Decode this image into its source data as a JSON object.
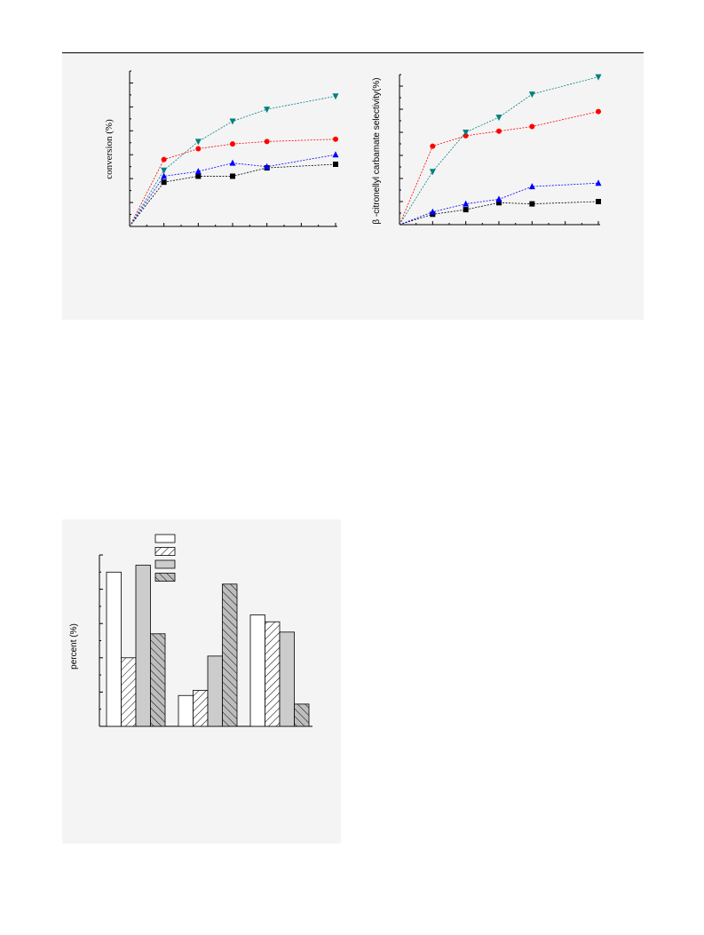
{
  "page": {
    "background": "#ffffff",
    "panel_background": "#f4f4f4"
  },
  "chart_data": [
    {
      "type": "line",
      "ylabel": "conversion (%)",
      "xlim": [
        0,
        6
      ],
      "ylim": [
        0,
        13
      ],
      "grid": false,
      "series": [
        {
          "marker": "square",
          "color": "#000000",
          "x": [
            0,
            1,
            2,
            3,
            4,
            6
          ],
          "y": [
            0,
            3.7,
            4.2,
            4.2,
            4.9,
            5.2
          ]
        },
        {
          "marker": "triangle-up",
          "color": "#0000ff",
          "x": [
            0,
            1,
            2,
            3,
            4,
            6
          ],
          "y": [
            0,
            4.2,
            4.6,
            5.3,
            5.0,
            6.0
          ]
        },
        {
          "marker": "circle",
          "color": "#ff0000",
          "x": [
            0,
            1,
            2,
            3,
            4,
            6
          ],
          "y": [
            0,
            5.6,
            6.5,
            6.9,
            7.1,
            7.3
          ]
        },
        {
          "marker": "triangle-down",
          "color": "#008080",
          "x": [
            0,
            1,
            2,
            3,
            4,
            6
          ],
          "y": [
            0,
            4.7,
            7.1,
            8.8,
            9.8,
            10.9
          ]
        }
      ]
    },
    {
      "type": "line",
      "ylabel": "β -citronellyl carbamate selectivity(%)",
      "xlim": [
        0,
        6
      ],
      "ylim": [
        0,
        13
      ],
      "grid": false,
      "series": [
        {
          "marker": "square",
          "color": "#000000",
          "x": [
            0,
            1,
            2,
            3,
            4,
            6
          ],
          "y": [
            0,
            0.9,
            1.3,
            1.9,
            1.8,
            2.0
          ]
        },
        {
          "marker": "triangle-up",
          "color": "#0000ff",
          "x": [
            0,
            1,
            2,
            3,
            4,
            6
          ],
          "y": [
            0,
            1.1,
            1.8,
            2.2,
            3.3,
            3.6
          ]
        },
        {
          "marker": "circle",
          "color": "#ff0000",
          "x": [
            0,
            1,
            2,
            3,
            4,
            6
          ],
          "y": [
            0,
            6.8,
            7.7,
            8.1,
            8.5,
            9.8
          ]
        },
        {
          "marker": "triangle-down",
          "color": "#008080",
          "x": [
            0,
            1,
            2,
            3,
            4,
            6
          ],
          "y": [
            0,
            4.6,
            8.0,
            9.3,
            11.3,
            12.8
          ]
        }
      ]
    },
    {
      "type": "bar",
      "ylabel": "percent (%)",
      "ylim": [
        0,
        100
      ],
      "grid": false,
      "legend": "top-center",
      "categories": [
        "",
        "",
        ""
      ],
      "series": [
        {
          "fill": "white",
          "values": [
            90,
            18,
            65
          ]
        },
        {
          "fill": "hatch-light",
          "values": [
            40,
            21,
            61
          ]
        },
        {
          "fill": "gray",
          "values": [
            94,
            41,
            55
          ]
        },
        {
          "fill": "hatch-gray",
          "values": [
            54,
            83,
            13
          ]
        }
      ]
    }
  ]
}
